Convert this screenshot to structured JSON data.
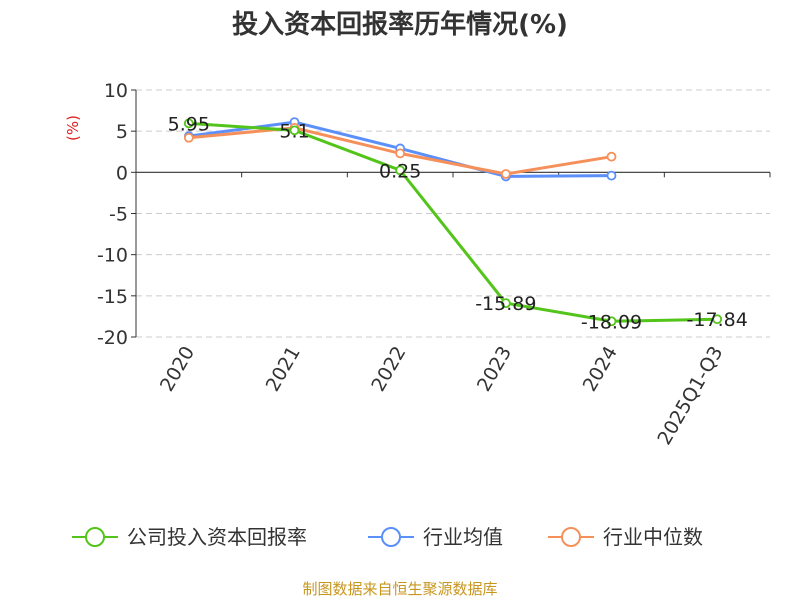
{
  "chart_data": {
    "type": "line",
    "title": "投入资本回报率历年情况(%)",
    "ylabel": "(%)",
    "xlabel": "",
    "categories": [
      "2020",
      "2021",
      "2022",
      "2023",
      "2024",
      "2025Q1-Q3"
    ],
    "ylim": [
      -20,
      10
    ],
    "yticks": [
      10,
      5,
      0,
      -5,
      -10,
      -15,
      -20
    ],
    "grid": true,
    "legend_position": "bottom",
    "series": [
      {
        "name": "公司投入资本回报率",
        "color": "#52c41a",
        "values": [
          5.95,
          5.1,
          0.25,
          -15.89,
          -18.09,
          -17.84
        ],
        "labels": [
          "5.95",
          "5.1",
          "0.25",
          "-15.89",
          "-18.09",
          "-17.84"
        ]
      },
      {
        "name": "行业均值",
        "color": "#5b8ff9",
        "values": [
          4.4,
          6.1,
          2.9,
          -0.5,
          -0.4,
          null
        ]
      },
      {
        "name": "行业中位数",
        "color": "#f6905a",
        "values": [
          4.2,
          5.4,
          2.3,
          -0.2,
          1.9,
          null
        ]
      }
    ]
  },
  "source": "制图数据来自恒生聚源数据库"
}
